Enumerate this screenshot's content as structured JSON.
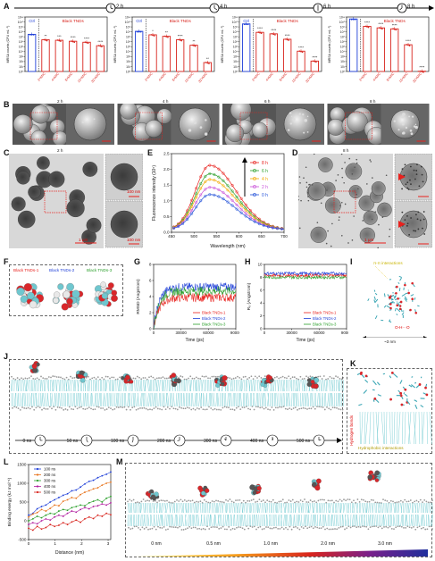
{
  "panels": {
    "A": "A",
    "B": "B",
    "C": "C",
    "D": "D",
    "E": "E",
    "F": "F",
    "G": "G",
    "H": "H",
    "I": "I",
    "J": "J",
    "K": "K",
    "L": "L",
    "M": "M"
  },
  "timeline_a": [
    "2 h",
    "4 h",
    "6 h",
    "8 h"
  ],
  "bar_charts": {
    "ylabel": "MRSA counts (CFU mL⁻¹)",
    "ctrl_label": "Ctrl",
    "group_label": "Black TNDs",
    "categories": [
      "2×MIC",
      "4×MIC",
      "8×MIC",
      "16×MIC",
      "32×MIC"
    ],
    "yticks": [
      "10¹¹",
      "10¹⁰",
      "10⁹",
      "10⁸",
      "10⁷",
      "10⁶",
      "10⁵",
      "10⁴",
      "10³",
      "10²",
      "10¹",
      "10⁰"
    ],
    "charts": [
      {
        "time": "2 h",
        "ctrl": 7.5,
        "values": [
          6.4,
          6.3,
          6.1,
          5.9,
          5.2
        ],
        "sig": [
          "**",
          "***",
          "****",
          "****",
          "****"
        ]
      },
      {
        "time": "4 h",
        "ctrl": 8.1,
        "values": [
          7.4,
          7.1,
          6.4,
          5.3,
          1.8
        ],
        "sig": [
          "*",
          "**",
          "****",
          "**",
          "**"
        ]
      },
      {
        "time": "6 h",
        "ctrl": 9.6,
        "values": [
          7.9,
          7.6,
          6.5,
          4.1,
          2.1
        ],
        "sig": [
          "****",
          "****",
          "****",
          "****",
          "****"
        ]
      },
      {
        "time": "8 h",
        "ctrl": 10.6,
        "values": [
          9.1,
          8.8,
          8.6,
          5.4,
          0
        ],
        "sig": [
          "****",
          "****",
          "****",
          "****",
          "****"
        ]
      }
    ]
  },
  "sem_b": [
    "2 h",
    "4 h",
    "6 h",
    "8 h"
  ],
  "tem_c": {
    "time": "2 h",
    "scale_main": "1 μm",
    "scale_inset1": "100 nm",
    "scale_inset2": "100 nm"
  },
  "tem_d": {
    "time": "8 h",
    "scale_main": "1 μm",
    "scale_inset1": "100 nm",
    "scale_inset2": "100 nm"
  },
  "chart_data": [
    {
      "type": "line",
      "id": "E",
      "xlabel": "Wavelength (nm)",
      "ylabel": "Fluorescence intensity (10⁵)",
      "xlim": [
        450,
        700
      ],
      "ylim": [
        0,
        2.5
      ],
      "xticks": [
        450,
        500,
        550,
        600,
        650,
        700
      ],
      "yticks": [
        0.0,
        0.5,
        1.0,
        1.5,
        2.0,
        2.5
      ],
      "series": [
        {
          "name": "8 h",
          "color": "#e8211d",
          "peak": 2.05
        },
        {
          "name": "6 h",
          "color": "#2ca02c",
          "peak": 1.78
        },
        {
          "name": "4 h",
          "color": "#f2a900",
          "peak": 1.6
        },
        {
          "name": "2 h",
          "color": "#c94fd8",
          "peak": 1.35
        },
        {
          "name": "0 h",
          "color": "#1f4fd8",
          "peak": 1.12
        }
      ],
      "peak_wavelength": 535
    },
    {
      "type": "line",
      "id": "G",
      "xlabel": "Time (ps)",
      "ylabel": "RMSD (Angstrom)",
      "xlim": [
        0,
        90000
      ],
      "ylim": [
        0,
        8
      ],
      "xticks": [
        0,
        30000,
        60000,
        90000
      ],
      "yticks": [
        0,
        2,
        4,
        6,
        8
      ],
      "series": [
        {
          "name": "Black TNDs-1",
          "color": "#e8211d",
          "level": 3.9
        },
        {
          "name": "Black TNDs-2",
          "color": "#1f3fd8",
          "level": 5.2
        },
        {
          "name": "Black TNDs-3",
          "color": "#2ca02c",
          "level": 4.7
        }
      ]
    },
    {
      "type": "line",
      "id": "H",
      "xlabel": "Time (ps)",
      "ylabel": "R₉ (Angstrom)",
      "xlim": [
        0,
        90000
      ],
      "ylim": [
        0,
        10
      ],
      "xticks": [
        0,
        30000,
        60000,
        90000
      ],
      "yticks": [
        0,
        2,
        4,
        6,
        8,
        10
      ],
      "series": [
        {
          "name": "Black TNDs-1",
          "color": "#e8211d",
          "level": 8.3
        },
        {
          "name": "Black TNDs-2",
          "color": "#1f3fd8",
          "level": 8.6
        },
        {
          "name": "Black TNDs-3",
          "color": "#2ca02c",
          "level": 8.0
        }
      ]
    },
    {
      "type": "line",
      "id": "L",
      "xlabel": "Distance (nm)",
      "ylabel": "Binding energy (kJ mol⁻¹)",
      "xlim": [
        0,
        3.1
      ],
      "ylim": [
        -500,
        1500
      ],
      "xticks": [
        0,
        1,
        2,
        3
      ],
      "yticks": [
        -500,
        0,
        500,
        1000,
        1500
      ],
      "series": [
        {
          "name": "100 ns",
          "color": "#1f3fd8",
          "values": [
            150,
            200,
            320,
            380,
            420,
            500,
            560,
            620,
            680,
            720,
            800,
            820,
            900,
            980,
            1050,
            1080,
            1150,
            1200,
            1240,
            1300
          ]
        },
        {
          "name": "200 ns",
          "color": "#e8741d",
          "values": [
            100,
            180,
            220,
            300,
            260,
            330,
            420,
            400,
            520,
            560,
            620,
            600,
            700,
            760,
            800,
            850,
            880,
            950,
            1000,
            1030
          ]
        },
        {
          "name": "300 ns",
          "color": "#2ca02c",
          "values": [
            0,
            50,
            120,
            80,
            150,
            200,
            180,
            260,
            300,
            280,
            350,
            380,
            420,
            400,
            480,
            520,
            560,
            500,
            600,
            650
          ]
        },
        {
          "name": "400 ns",
          "color": "#b01c9e",
          "values": [
            -100,
            -50,
            -80,
            0,
            50,
            20,
            100,
            150,
            120,
            200,
            260,
            230,
            300,
            350,
            320,
            380,
            400,
            450,
            420,
            480
          ]
        },
        {
          "name": "500 ns",
          "color": "#d8241d",
          "values": [
            -200,
            -250,
            -150,
            -220,
            -180,
            -100,
            -150,
            -120,
            -50,
            -100,
            -30,
            20,
            -40,
            50,
            100,
            60,
            150,
            120,
            200,
            160
          ]
        }
      ]
    }
  ],
  "panel_f": {
    "labels": [
      "Black TNDs-1",
      "Black TNDs-2",
      "Black TNDs-3"
    ],
    "colors": [
      "#e8211d",
      "#1f3fd8",
      "#2ca02c"
    ]
  },
  "panel_i": {
    "pi_label": "π-π interactions",
    "oh_label": "O-H···O",
    "width_label": "~3 nm"
  },
  "panel_j": {
    "times": [
      "0 ns",
      "50 ns",
      "100 ns",
      "200 ns",
      "300 ns",
      "400 ns",
      "500 ns"
    ]
  },
  "panel_k": {
    "hbond_label": "Hydrogen bonds",
    "hydrophobic_label": "Hydrophobic interactions"
  },
  "panel_m": {
    "distances": [
      "0 nm",
      "0.5 nm",
      "1.0 nm",
      "2.0 nm",
      "3.0 nm"
    ]
  }
}
